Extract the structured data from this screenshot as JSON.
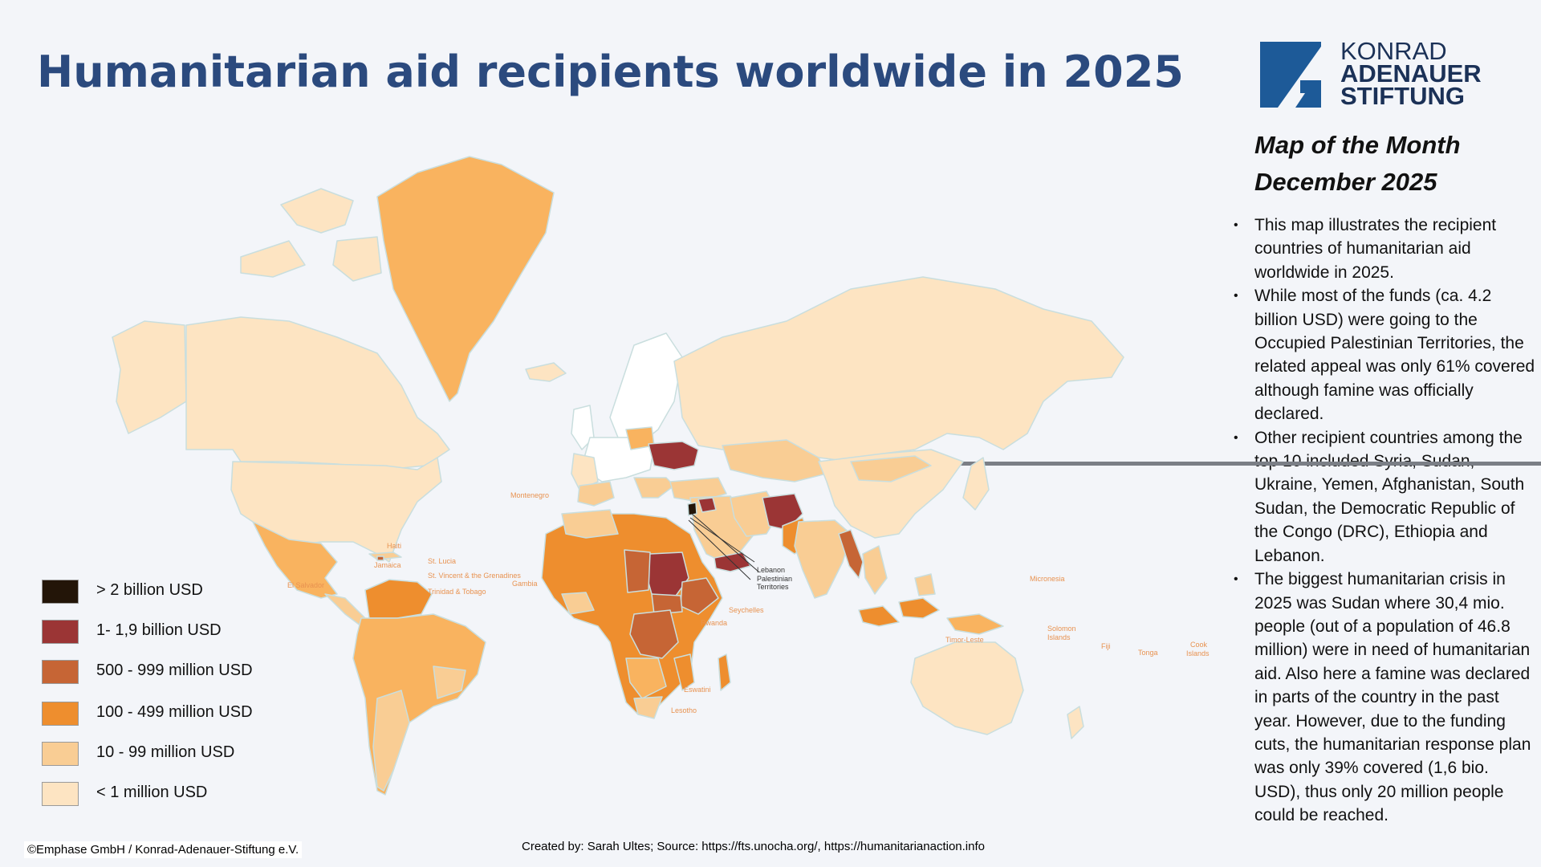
{
  "title": "Humanitarian aid recipients worldwide in 2025",
  "logo": {
    "line1": "KONRAD",
    "line2": "ADENAUER",
    "line3": "STIFTUNG"
  },
  "side": {
    "heading_line1": "Map of the Month",
    "heading_line2": "December 2025",
    "bullets": [
      "This map illustrates the recipient countries of humanitarian aid worldwide in 2025.",
      "While most of the funds (ca. 4.2 billion USD) were going to the Occupied Palestinian Territories, the related appeal was only 61% covered although famine was officially declared.",
      "Other recipient countries among the top 10 included Syria, Sudan, Ukraine, Yemen, Afghanistan, South Sudan, the Democratic Republic of the Congo (DRC), Ethiopia and Lebanon.",
      "The biggest humanitarian crisis in 2025 was Sudan where 30,4 mio. people (out of a population of 46.8 million) were in need of humanitarian aid. Also here a famine was declared in parts of the country in the past year. However, due to the funding cuts, the humanitarian response plan was only 39% covered (1,6 bio. USD), thus only 20 million people could be reached."
    ]
  },
  "legend": [
    {
      "label": "> 2 billion USD",
      "color": "#231508"
    },
    {
      "label": "1- 1,9 billion USD",
      "color": "#9b3535"
    },
    {
      "label": "500 - 999 million USD",
      "color": "#c66535"
    },
    {
      "label": "100 - 499 million USD",
      "color": "#ee8e2e"
    },
    {
      "label": "10 - 99 million USD",
      "color": "#f9cd94"
    },
    {
      "label": "< 1 million USD",
      "color": "#fde4c2"
    }
  ],
  "map_labels": {
    "haiti": "Haiti",
    "jamaica": "Jamaica",
    "el_salvador": "El Salvador",
    "st_lucia": "St. Lucia",
    "st_vincent": "St. Vincent & the Grenadines",
    "trinidad": "Trinidad & Tobago",
    "gambia": "Gambia",
    "montenegro": "Montenegro",
    "lebanon": "Lebanon",
    "palestinian": "Palestinian",
    "territories": "Territories",
    "rwanda": "Rwanda",
    "seychelles": "Seychelles",
    "eswatini": "Eswatini",
    "lesotho": "Lesotho",
    "timor_leste": "Timor-Leste",
    "micronesia": "Micronesia",
    "solomon": "Solomon",
    "islands": "Islands",
    "fiji": "Fiji",
    "tonga": "Tonga",
    "cook": "Cook",
    "cook_islands": "Islands"
  },
  "credits": {
    "left": "©Emphase GmbH / Konrad-Adenauer-Stiftung e.V.",
    "center": "Created by: Sarah Ultes; Source: https://fts.unocha.org/, https://humanitarianaction.info"
  },
  "colors": {
    "title": "#2b4a7e",
    "background": "#f3f5f9",
    "logo_blue": "#1d5a98"
  }
}
